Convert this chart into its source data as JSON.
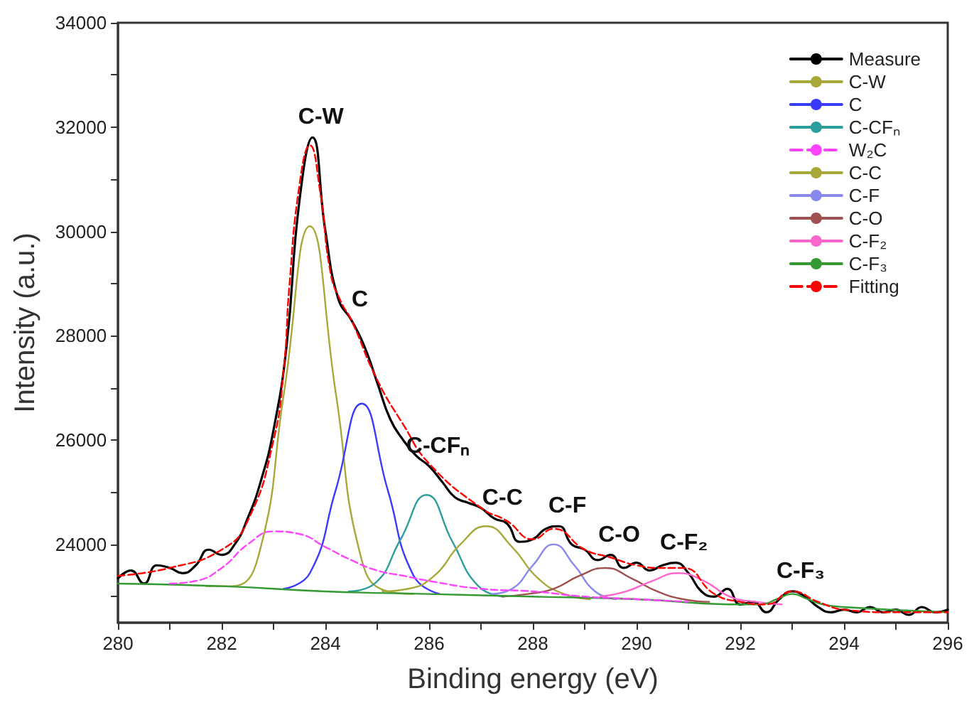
{
  "chart_data": {
    "type": "line",
    "xlabel": "Binding energy (eV)",
    "ylabel": "Intensity (a.u.)",
    "xlim": [
      280,
      296
    ],
    "xticks": [
      280,
      {
        "value": 281,
        "label": null
      },
      282,
      {
        "value": 283,
        "label": null
      },
      284,
      {
        "value": 285,
        "label": null
      },
      286,
      {
        "value": 287,
        "label": null
      },
      288,
      {
        "value": 289,
        "label": null
      },
      290,
      {
        "value": 291,
        "label": null
      },
      292,
      {
        "value": 293,
        "label": null
      },
      294,
      {
        "value": 295,
        "label": null
      },
      296
    ],
    "ylim": [
      22500,
      34000
    ],
    "yticks": [
      {
        "value": 23000,
        "label": null
      },
      24000,
      {
        "value": 25000,
        "label": null
      },
      26000,
      {
        "value": 27000,
        "label": null
      },
      28000,
      {
        "value": 29000,
        "label": null
      },
      30000,
      {
        "value": 31000,
        "label": null
      },
      32000,
      {
        "value": 33000,
        "label": null
      },
      34000
    ],
    "grid": false,
    "legend": "top right",
    "marker": "none",
    "series": [
      {
        "name": "Measure",
        "color": "#000000",
        "x": [
          280,
          280.25,
          280.5,
          280.75,
          281,
          281.25,
          281.5,
          281.75,
          282,
          282.25,
          282.5,
          282.75,
          283,
          283.25,
          283.5,
          283.75,
          284,
          284.25,
          284.5,
          284.75,
          285,
          285.25,
          285.5,
          285.75,
          286,
          286.25,
          286.5,
          286.75,
          287,
          287.25,
          287.5,
          287.75,
          288,
          288.25,
          288.5,
          288.75,
          289,
          289.25,
          289.5,
          289.75,
          290,
          290.25,
          290.5,
          290.75,
          291,
          291.25,
          291.5,
          291.75,
          292,
          292.25,
          292.5,
          292.75,
          293,
          293.25,
          293.5,
          293.75,
          294,
          294.25,
          294.5,
          294.75,
          295,
          295.25,
          295.5,
          295.75,
          296
        ],
        "values": [
          23350,
          23500,
          23250,
          23600,
          23550,
          23450,
          23600,
          23900,
          23800,
          24000,
          24500,
          25200,
          26200,
          27800,
          30600,
          31800,
          30000,
          28700,
          28300,
          27800,
          27100,
          26400,
          26000,
          25700,
          25500,
          25200,
          24900,
          24800,
          24700,
          24500,
          24400,
          24050,
          24100,
          24300,
          24350,
          24000,
          23900,
          23700,
          23800,
          23550,
          23650,
          23500,
          23600,
          23650,
          23450,
          23100,
          23000,
          23150,
          22850,
          22900,
          22700,
          22950,
          23100,
          23000,
          22800,
          22700,
          22750,
          22700,
          22800,
          22700,
          22750,
          22650,
          22800,
          22700,
          22750
        ]
      },
      {
        "name": "C-W",
        "color": "#a8a83a",
        "x": [
          281.7,
          282.2,
          282.7,
          283.2,
          283.7,
          284.2,
          284.7,
          285.2,
          285.7
        ],
        "values": [
          23200,
          23200,
          23750,
          26900,
          30100,
          26900,
          23700,
          23100,
          23050
        ]
      },
      {
        "name": "C",
        "color": "#3a3aff",
        "x": [
          283.2,
          283.7,
          284.2,
          284.7,
          285.2,
          285.7,
          286.2
        ],
        "values": [
          23150,
          23450,
          25050,
          26700,
          25050,
          23400,
          23050
        ]
      },
      {
        "name": "C-CFₙ",
        "color": "#2a9d9d",
        "x": [
          284.45,
          284.95,
          285.45,
          285.95,
          286.45,
          286.95,
          287.45
        ],
        "values": [
          23100,
          23250,
          24100,
          24950,
          24050,
          23200,
          23000
        ]
      },
      {
        "name": "W₂C",
        "color": "#ff44ff",
        "line_style": "dashed",
        "x": [
          281,
          281.5,
          282,
          282.5,
          283,
          283.5,
          284,
          284.5,
          285,
          285.5,
          286,
          287,
          288,
          289,
          290,
          291
        ],
        "values": [
          23250,
          23300,
          23550,
          24000,
          24250,
          24200,
          23950,
          23700,
          23500,
          23400,
          23300,
          23150,
          23100,
          23000,
          22950,
          22900
        ]
      },
      {
        "name": "C-C",
        "color": "#a8a83a",
        "x": [
          285.1,
          285.6,
          286.1,
          286.6,
          287.1,
          287.6,
          288.1,
          288.6,
          289.1
        ],
        "values": [
          23100,
          23150,
          23400,
          24000,
          24350,
          23950,
          23350,
          23050,
          22950
        ]
      },
      {
        "name": "C-F",
        "color": "#8888ee",
        "x": [
          287.2,
          287.6,
          288,
          288.4,
          288.8,
          289.2,
          289.6
        ],
        "values": [
          23050,
          23150,
          23600,
          24000,
          23600,
          23100,
          22950
        ]
      },
      {
        "name": "C-O",
        "color": "#a05050",
        "x": [
          287.4,
          287.9,
          288.4,
          288.9,
          289.4,
          289.9,
          290.4,
          290.9,
          291.4
        ],
        "values": [
          23000,
          23050,
          23150,
          23400,
          23550,
          23350,
          23100,
          22950,
          22900
        ]
      },
      {
        "name": "C-F₂",
        "color": "#ff66cc",
        "x": [
          289.3,
          289.8,
          290.3,
          290.8,
          291.3,
          291.8,
          292.3,
          292.8
        ],
        "values": [
          23000,
          23100,
          23300,
          23450,
          23300,
          23000,
          22900,
          22850
        ]
      },
      {
        "name": "C-F₃",
        "color": "#339933",
        "x": [
          280,
          282,
          284,
          286,
          288,
          290,
          292,
          292.4,
          292.7,
          293,
          293.3,
          293.6,
          294,
          296
        ],
        "values": [
          23250,
          23200,
          23100,
          23050,
          23000,
          22950,
          22850,
          22850,
          22950,
          23050,
          22950,
          22850,
          22800,
          22700
        ]
      },
      {
        "name": "Fitting",
        "color": "#ff0000",
        "line_style": "dashed",
        "x": [
          280,
          281,
          282,
          282.5,
          283,
          283.2,
          283.3,
          283.5,
          283.7,
          283.9,
          284.1,
          284.3,
          284.5,
          285,
          285.5,
          286,
          287,
          287.5,
          288,
          288.4,
          289,
          289.5,
          290,
          290.5,
          290.9,
          291.5,
          292,
          292.5,
          293,
          293.5,
          294,
          295,
          296
        ],
        "values": [
          23400,
          23550,
          23900,
          24450,
          26000,
          27400,
          28900,
          30900,
          31650,
          30750,
          29200,
          28650,
          28300,
          27150,
          26300,
          25550,
          24700,
          24450,
          24100,
          24300,
          23900,
          23750,
          23600,
          23550,
          23550,
          23050,
          22900,
          22850,
          23100,
          22900,
          22750,
          22700,
          22700
        ]
      }
    ],
    "annotations": [
      {
        "text": "C-W",
        "x": 283.75,
        "y": 31800
      },
      {
        "text": "C",
        "x": 284.5,
        "y": 28300
      },
      {
        "text": "C-CFₙ",
        "x": 286,
        "y": 25500
      },
      {
        "text": "C-C",
        "x": 287.25,
        "y": 24500
      },
      {
        "text": "C-F",
        "x": 288.5,
        "y": 24350
      },
      {
        "text": "C-O",
        "x": 289.5,
        "y": 23800
      },
      {
        "text": "C-F₂",
        "x": 290.75,
        "y": 23650
      },
      {
        "text": "C-F₃",
        "x": 293,
        "y": 23100
      }
    ]
  }
}
